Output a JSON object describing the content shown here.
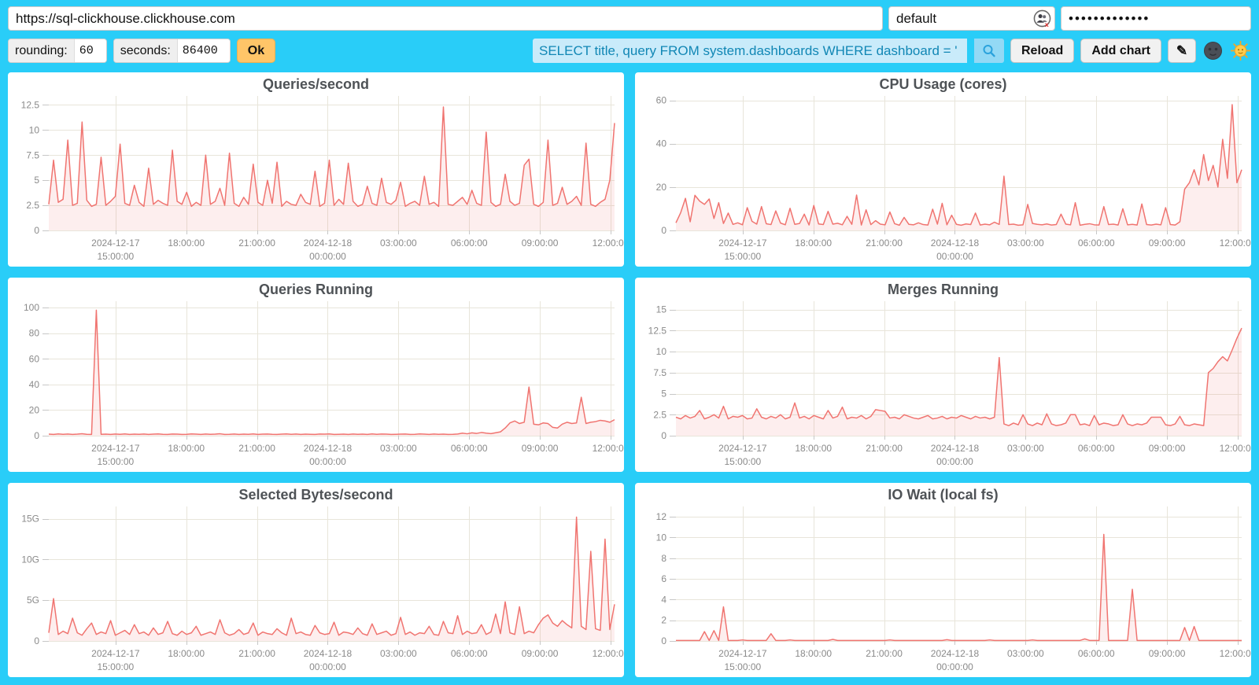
{
  "topbar": {
    "url_input": {
      "value": "https://sql-clickhouse.clickhouse.com"
    },
    "user_input": {
      "value": "default"
    },
    "password_input": {
      "value": "•••••••••••••"
    },
    "rounding_label": "rounding:",
    "rounding_value": "60",
    "seconds_label": "seconds:",
    "seconds_value": "86400",
    "ok_button": "Ok",
    "query_input": {
      "value": "SELECT title, query FROM system.dashboards WHERE dashboard = '"
    },
    "reload_button": "Reload",
    "add_chart_button": "Add chart",
    "edit_button": "✎",
    "icons": {
      "user_icon": "password-manager-people-icon-with-red-x",
      "search_icon": "magnifier",
      "dark_theme_icon": "new-moon-face",
      "light_theme_icon": "sun-with-face"
    }
  },
  "colors": {
    "background": "#29CDF8",
    "line": "#F07470",
    "fill": "rgba(240,116,112,0.12)",
    "grid": "#E8E5DA",
    "axis_text": "#8A8A8A",
    "tick_mark": "#C7C7C7",
    "title_text": "#4E5256",
    "ok_button_bg": "#FFC568",
    "query_bg": "#C9EBFA",
    "query_text": "#1187B5",
    "search_btn_bg": "#93D9F5"
  },
  "xticks_shared": [
    {
      "f": 0.118,
      "lines": [
        "2024-12-17",
        "15:00:00"
      ]
    },
    {
      "f": 0.243,
      "lines": [
        "18:00:00"
      ]
    },
    {
      "f": 0.368,
      "lines": [
        "21:00:00"
      ]
    },
    {
      "f": 0.493,
      "lines": [
        "2024-12-18",
        "00:00:00"
      ]
    },
    {
      "f": 0.618,
      "lines": [
        "03:00:00"
      ]
    },
    {
      "f": 0.743,
      "lines": [
        "06:00:00"
      ]
    },
    {
      "f": 0.868,
      "lines": [
        "09:00:00"
      ]
    },
    {
      "f": 0.993,
      "lines": [
        "12:00:00"
      ]
    }
  ],
  "chart_data": [
    {
      "type": "area",
      "title": "Queries/second",
      "ylim": [
        0,
        13.4
      ],
      "yticks": [
        {
          "v": 0,
          "label": "0"
        },
        {
          "v": 2.5,
          "label": "2.5"
        },
        {
          "v": 5,
          "label": "5"
        },
        {
          "v": 7.5,
          "label": "7.5"
        },
        {
          "v": 10,
          "label": "10"
        },
        {
          "v": 12.5,
          "label": "12.5"
        }
      ],
      "values": [
        2.6,
        7.0,
        2.8,
        3.1,
        9.0,
        2.5,
        2.7,
        10.8,
        3.0,
        2.4,
        2.6,
        7.3,
        2.5,
        2.9,
        3.4,
        8.6,
        2.7,
        2.5,
        4.5,
        2.8,
        2.4,
        6.2,
        2.6,
        3.0,
        2.7,
        2.5,
        8.0,
        2.9,
        2.6,
        3.8,
        2.4,
        2.8,
        2.5,
        7.5,
        2.6,
        2.9,
        4.2,
        2.5,
        7.7,
        2.7,
        2.4,
        3.3,
        2.6,
        6.6,
        2.8,
        2.5,
        5.0,
        2.7,
        6.8,
        2.4,
        2.9,
        2.6,
        2.5,
        3.6,
        2.8,
        2.6,
        5.9,
        2.4,
        2.7,
        7.0,
        2.5,
        3.1,
        2.6,
        6.7,
        2.9,
        2.4,
        2.6,
        4.4,
        2.7,
        2.5,
        5.2,
        2.8,
        2.6,
        3.0,
        4.8,
        2.4,
        2.7,
        2.9,
        2.5,
        5.4,
        2.6,
        2.8,
        2.4,
        12.3,
        2.6,
        2.5,
        2.9,
        3.3,
        2.6,
        4.0,
        2.7,
        2.5,
        9.8,
        2.8,
        2.4,
        2.6,
        5.6,
        2.9,
        2.5,
        2.7,
        6.5,
        7.1,
        2.6,
        2.4,
        2.8,
        9.0,
        2.5,
        2.7,
        4.3,
        2.6,
        2.9,
        3.4,
        2.5,
        8.7,
        2.6,
        2.4,
        2.8,
        3.1,
        5.0,
        10.7
      ]
    },
    {
      "type": "area",
      "title": "CPU Usage (cores)",
      "ylim": [
        0,
        62
      ],
      "yticks": [
        {
          "v": 0,
          "label": "0"
        },
        {
          "v": 20,
          "label": "20"
        },
        {
          "v": 40,
          "label": "40"
        },
        {
          "v": 60,
          "label": "60"
        }
      ],
      "values": [
        3.5,
        8.2,
        14.8,
        4.0,
        16.2,
        13.5,
        12.0,
        14.5,
        5.5,
        12.8,
        3.2,
        8.0,
        2.8,
        3.5,
        2.6,
        10.5,
        4.2,
        2.9,
        11.0,
        3.1,
        2.7,
        9.0,
        3.4,
        2.6,
        10.2,
        2.8,
        3.2,
        7.5,
        2.5,
        11.5,
        3.0,
        2.7,
        8.8,
        2.9,
        3.3,
        2.6,
        6.5,
        2.8,
        16.3,
        2.5,
        9.5,
        2.7,
        4.5,
        2.9,
        2.6,
        8.5,
        3.1,
        2.4,
        6.0,
        2.8,
        2.6,
        3.5,
        2.7,
        2.5,
        9.8,
        2.9,
        12.5,
        2.6,
        7.0,
        2.8,
        2.4,
        3.0,
        2.7,
        8.0,
        2.5,
        2.9,
        2.6,
        3.8,
        2.8,
        25.0,
        2.7,
        2.9,
        2.4,
        2.6,
        12.0,
        3.2,
        2.8,
        2.6,
        3.0,
        2.5,
        2.7,
        7.5,
        2.9,
        2.6,
        12.8,
        2.4,
        2.8,
        3.1,
        2.6,
        2.5,
        11.0,
        2.7,
        2.9,
        2.5,
        10.0,
        2.6,
        2.8,
        2.5,
        12.2,
        2.7,
        2.5,
        2.9,
        2.6,
        10.5,
        2.7,
        2.5,
        4.0,
        19.0,
        22.0,
        28.0,
        21.0,
        35.0,
        23.0,
        30.0,
        20.0,
        42.0,
        24.0,
        58.0,
        22.0,
        28.0
      ]
    },
    {
      "type": "area",
      "title": "Queries Running",
      "ylim": [
        0,
        105
      ],
      "yticks": [
        {
          "v": 0,
          "label": "0"
        },
        {
          "v": 20,
          "label": "20"
        },
        {
          "v": 40,
          "label": "40"
        },
        {
          "v": 60,
          "label": "60"
        },
        {
          "v": 80,
          "label": "80"
        },
        {
          "v": 100,
          "label": "100"
        }
      ],
      "values": [
        1.2,
        1.0,
        1.4,
        1.1,
        1.3,
        1.0,
        1.2,
        1.5,
        1.1,
        1.0,
        98.0,
        1.1,
        1.2,
        1.0,
        1.3,
        1.1,
        1.4,
        1.0,
        1.2,
        1.1,
        1.3,
        1.0,
        1.2,
        1.4,
        1.1,
        1.0,
        1.3,
        1.2,
        1.0,
        1.1,
        1.4,
        1.2,
        1.0,
        1.3,
        1.1,
        1.2,
        1.5,
        1.0,
        1.1,
        1.3,
        1.0,
        1.2,
        1.1,
        1.4,
        1.0,
        1.2,
        1.3,
        1.1,
        1.0,
        1.2,
        1.4,
        1.1,
        1.3,
        1.0,
        1.2,
        1.1,
        1.0,
        1.3,
        1.2,
        1.4,
        1.0,
        1.1,
        1.2,
        1.0,
        1.3,
        1.1,
        1.2,
        1.0,
        1.4,
        1.1,
        1.3,
        1.2,
        1.0,
        1.1,
        1.2,
        1.3,
        1.0,
        1.1,
        1.4,
        1.2,
        1.0,
        1.3,
        1.1,
        1.2,
        1.0,
        1.1,
        1.3,
        2.0,
        1.5,
        2.2,
        1.8,
        2.5,
        2.0,
        1.6,
        2.3,
        3.0,
        6.0,
        10.0,
        11.5,
        9.5,
        10.5,
        38.0,
        9.0,
        8.5,
        10.0,
        9.5,
        6.5,
        6.0,
        9.0,
        10.5,
        9.5,
        10.0,
        30.0,
        9.5,
        10.5,
        11.0,
        12.0,
        11.5,
        10.5,
        12.5
      ]
    },
    {
      "type": "area",
      "title": "Merges Running",
      "ylim": [
        0,
        16
      ],
      "yticks": [
        {
          "v": 0,
          "label": "0"
        },
        {
          "v": 2.5,
          "label": "2.5"
        },
        {
          "v": 5,
          "label": "5"
        },
        {
          "v": 7.5,
          "label": "7.5"
        },
        {
          "v": 10,
          "label": "10"
        },
        {
          "v": 12.5,
          "label": "12.5"
        },
        {
          "v": 15,
          "label": "15"
        }
      ],
      "values": [
        2.2,
        2.0,
        2.4,
        2.1,
        2.3,
        3.0,
        2.0,
        2.2,
        2.5,
        2.1,
        3.5,
        2.0,
        2.3,
        2.2,
        2.4,
        2.0,
        2.1,
        3.2,
        2.2,
        2.0,
        2.3,
        2.1,
        2.5,
        2.0,
        2.2,
        3.9,
        2.1,
        2.3,
        2.0,
        2.4,
        2.2,
        2.0,
        3.0,
        2.1,
        2.3,
        3.4,
        2.0,
        2.2,
        2.1,
        2.4,
        2.0,
        2.3,
        3.1,
        3.0,
        2.9,
        2.1,
        2.2,
        2.0,
        2.5,
        2.3,
        2.1,
        2.0,
        2.2,
        2.4,
        2.0,
        2.1,
        2.3,
        2.0,
        2.2,
        2.1,
        2.4,
        2.2,
        2.0,
        2.3,
        2.1,
        2.2,
        2.0,
        2.2,
        9.3,
        1.4,
        1.2,
        1.5,
        1.3,
        2.5,
        1.4,
        1.2,
        1.5,
        1.3,
        2.6,
        1.4,
        1.2,
        1.3,
        1.5,
        2.5,
        2.5,
        1.3,
        1.4,
        1.2,
        2.4,
        1.3,
        1.5,
        1.4,
        1.2,
        1.3,
        2.5,
        1.4,
        1.2,
        1.4,
        1.3,
        1.5,
        2.2,
        2.2,
        2.2,
        1.3,
        1.2,
        1.4,
        2.3,
        1.3,
        1.2,
        1.4,
        1.3,
        1.2,
        7.5,
        8.0,
        8.8,
        9.4,
        8.9,
        10.2,
        11.6,
        12.8
      ]
    },
    {
      "type": "area",
      "title": "Selected Bytes/second",
      "ylim": [
        0,
        16.5
      ],
      "yticks": [
        {
          "v": 0,
          "label": "0"
        },
        {
          "v": 5,
          "label": "5G"
        },
        {
          "v": 10,
          "label": "10G"
        },
        {
          "v": 15,
          "label": "15G"
        }
      ],
      "values": [
        1.0,
        5.2,
        0.8,
        1.2,
        0.9,
        2.8,
        1.0,
        0.7,
        1.5,
        2.2,
        0.8,
        1.1,
        0.9,
        2.5,
        0.7,
        1.0,
        1.3,
        0.8,
        2.0,
        0.9,
        1.1,
        0.7,
        1.6,
        0.8,
        1.0,
        2.4,
        0.9,
        0.7,
        1.2,
        0.8,
        1.0,
        1.8,
        0.7,
        0.9,
        1.1,
        0.8,
        2.6,
        1.0,
        0.7,
        0.9,
        1.4,
        0.8,
        1.0,
        2.2,
        0.7,
        1.1,
        0.9,
        0.8,
        1.5,
        1.0,
        0.7,
        2.8,
        0.9,
        1.1,
        0.8,
        0.7,
        1.9,
        1.0,
        0.8,
        0.9,
        2.3,
        0.7,
        1.1,
        1.0,
        0.8,
        1.6,
        0.9,
        0.7,
        2.1,
        0.8,
        1.0,
        1.2,
        0.7,
        0.9,
        2.9,
        0.8,
        1.1,
        0.7,
        1.0,
        0.9,
        1.8,
        0.8,
        0.7,
        2.4,
        1.0,
        0.9,
        3.1,
        0.8,
        1.2,
        0.9,
        1.0,
        2.0,
        0.8,
        1.1,
        3.3,
        0.9,
        4.8,
        1.0,
        0.8,
        4.2,
        0.9,
        1.2,
        1.0,
        2.0,
        2.8,
        3.2,
        2.2,
        1.8,
        2.5,
        2.0,
        1.6,
        15.2,
        1.8,
        1.4,
        11.0,
        1.5,
        1.3,
        12.5,
        1.4,
        4.5
      ]
    },
    {
      "type": "area",
      "title": "IO Wait (local fs)",
      "ylim": [
        0,
        13
      ],
      "yticks": [
        {
          "v": 0,
          "label": "0"
        },
        {
          "v": 2,
          "label": "2"
        },
        {
          "v": 4,
          "label": "4"
        },
        {
          "v": 6,
          "label": "6"
        },
        {
          "v": 8,
          "label": "8"
        },
        {
          "v": 10,
          "label": "10"
        },
        {
          "v": 12,
          "label": "12"
        }
      ],
      "values": [
        0.05,
        0.05,
        0.05,
        0.05,
        0.05,
        0.05,
        0.9,
        0.05,
        1.0,
        0.05,
        3.3,
        0.05,
        0.05,
        0.05,
        0.1,
        0.05,
        0.05,
        0.05,
        0.05,
        0.05,
        0.7,
        0.05,
        0.05,
        0.05,
        0.1,
        0.05,
        0.05,
        0.05,
        0.05,
        0.05,
        0.05,
        0.05,
        0.05,
        0.15,
        0.05,
        0.05,
        0.05,
        0.05,
        0.05,
        0.05,
        0.05,
        0.05,
        0.05,
        0.05,
        0.05,
        0.1,
        0.05,
        0.05,
        0.05,
        0.05,
        0.05,
        0.05,
        0.05,
        0.05,
        0.05,
        0.05,
        0.05,
        0.12,
        0.05,
        0.05,
        0.05,
        0.05,
        0.05,
        0.05,
        0.05,
        0.05,
        0.1,
        0.05,
        0.05,
        0.05,
        0.05,
        0.05,
        0.05,
        0.05,
        0.05,
        0.1,
        0.05,
        0.05,
        0.05,
        0.05,
        0.05,
        0.05,
        0.05,
        0.05,
        0.05,
        0.05,
        0.2,
        0.05,
        0.05,
        0.05,
        10.3,
        0.05,
        0.05,
        0.05,
        0.05,
        0.05,
        5.0,
        0.05,
        0.05,
        0.05,
        0.05,
        0.05,
        0.05,
        0.05,
        0.05,
        0.05,
        0.05,
        1.3,
        0.05,
        1.4,
        0.05,
        0.05,
        0.05,
        0.05,
        0.05,
        0.05,
        0.05,
        0.05,
        0.05,
        0.05
      ]
    }
  ]
}
